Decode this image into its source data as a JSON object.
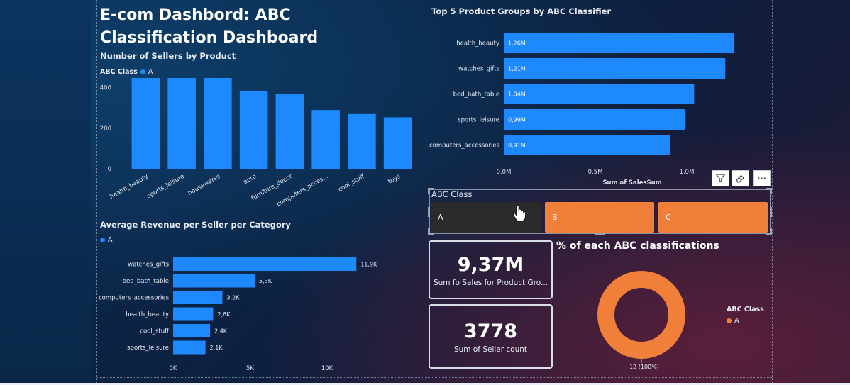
{
  "dashboard": {
    "title": "E-com Dashbord: ABC Classification Dashboard"
  },
  "colors": {
    "bar_blue": "#1e88ff",
    "orange": "#f07f3a",
    "dark_selected": "#2b2b2b"
  },
  "sellers_by_product": {
    "title": "Number of Sellers by Product",
    "legend_title": "ABC Class",
    "legend_item": "A",
    "y_ticks": [
      "0",
      "200",
      "400"
    ],
    "chart_data": {
      "type": "bar",
      "title": "Number of Sellers by Product",
      "categories": [
        "health_beauty",
        "sports_leisure",
        "housewares",
        "auto",
        "furniture_decor",
        "computers_acces...",
        "cool_stuff",
        "toys"
      ],
      "values": [
        492,
        482,
        468,
        384,
        371,
        290,
        270,
        254
      ],
      "ylim": [
        0,
        560
      ],
      "series": [
        {
          "name": "A",
          "values": [
            492,
            482,
            468,
            384,
            371,
            290,
            270,
            254
          ]
        }
      ]
    }
  },
  "top5_groups": {
    "title": "Top 5 Product Groups by ABC Classifier",
    "x_label": "Sum of SalesSum",
    "x_ticks": [
      "0,0M",
      "0,5M",
      "1,0M"
    ],
    "data_labels": [
      "1,26M",
      "1,21M",
      "1,04M",
      "0,99M",
      "0,91M"
    ],
    "chart_data": {
      "type": "bar",
      "title": "Top 5 Product Groups by ABC Classifier",
      "xlabel": "Sum of SalesSum",
      "categories": [
        "health_beauty",
        "watches_gifts",
        "bed_bath_table",
        "sports_leisure",
        "computers_accessories"
      ],
      "values": [
        1.26,
        1.21,
        1.04,
        0.99,
        0.91
      ],
      "unit": "M",
      "xlim": [
        0,
        1.3
      ]
    }
  },
  "avg_revenue": {
    "title": "Average Revenue per Seller per Category",
    "legend_item": "A",
    "x_ticks": [
      "0K",
      "5K",
      "10K"
    ],
    "data_labels": [
      "11,9K",
      "5,3K",
      "3,2K",
      "2,6K",
      "2,4K",
      "2,1K"
    ],
    "chart_data": {
      "type": "bar",
      "title": "Average Revenue per Seller per Category",
      "categories": [
        "watches_gifts",
        "bed_bath_table",
        "computers_accessories",
        "health_beauty",
        "cool_stuff",
        "sports_leisure"
      ],
      "values": [
        11.9,
        5.3,
        3.2,
        2.6,
        2.4,
        2.1
      ],
      "unit": "K",
      "xlim": [
        0,
        13
      ]
    }
  },
  "slicer": {
    "label": "ABC Class",
    "options": [
      {
        "label": "A",
        "selected": true
      },
      {
        "label": "B",
        "selected": false
      },
      {
        "label": "C",
        "selected": false
      }
    ]
  },
  "toolbar": {
    "filter_icon": "filter-icon",
    "eraser_icon": "eraser-icon",
    "more_glyph": "···"
  },
  "cards": {
    "sales": {
      "value": "9,37M",
      "label": "Sum fo Sales for Product Gro..."
    },
    "sellers": {
      "value": "3778",
      "label": "Sum of Seller count"
    }
  },
  "donut": {
    "title": "% of each ABC classifications",
    "legend_title": "ABC Class",
    "legend_item": "A",
    "data_label": "12 (100%)",
    "chart_data": {
      "type": "pie",
      "categories": [
        "A"
      ],
      "values": [
        12
      ],
      "percent": [
        100
      ]
    }
  }
}
